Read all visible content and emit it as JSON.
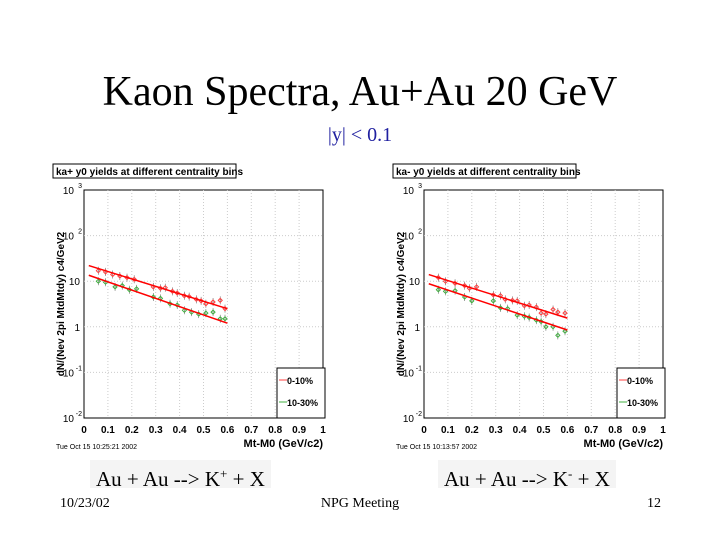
{
  "slide": {
    "title": "Kaon Spectra, Au+Au 20 GeV",
    "subtitle": "|y| < 0.1",
    "caption_left_pre": "Au + Au --> K",
    "caption_left_sup": "+",
    "caption_left_post": " + X",
    "caption_right_pre": "Au + Au --> K",
    "caption_right_sup": "-",
    "caption_right_post": " + X",
    "footer_date": "10/23/02",
    "footer_center": "NPG Meeting",
    "footer_page": "12"
  },
  "chart_data": [
    {
      "type": "scatter",
      "title": "ka+ y0 yields at different centrality bins",
      "ylabel": "dN/(Nev 2pi MtdMtdy) c4/GeV2",
      "xlabel": "Mt-M0 (GeV/c2)",
      "timestamp": "Tue Oct 15 10:25:21 2002",
      "xlim": [
        0,
        1
      ],
      "ylim": [
        0.01,
        1000
      ],
      "yscale": "log",
      "grid": true,
      "legend": "bottom-right",
      "xticks": [
        "0",
        "0.1",
        "0.2",
        "0.3",
        "0.4",
        "0.5",
        "0.6",
        "0.7",
        "0.8",
        "0.9",
        "1"
      ],
      "yticks": [
        "10^-2",
        "10^-1",
        "1",
        "10",
        "10^2",
        "10^3"
      ],
      "series": [
        {
          "name": "0-10%",
          "color": "#ff4040",
          "fit": [
            [
              0.02,
              22
            ],
            [
              0.6,
              2.5
            ]
          ],
          "points": [
            [
              0.06,
              17
            ],
            [
              0.09,
              16
            ],
            [
              0.12,
              14
            ],
            [
              0.15,
              13
            ],
            [
              0.18,
              12
            ],
            [
              0.21,
              11
            ],
            [
              0.29,
              7.5
            ],
            [
              0.32,
              7
            ],
            [
              0.34,
              7.2
            ],
            [
              0.37,
              6
            ],
            [
              0.39,
              5.5
            ],
            [
              0.42,
              4.8
            ],
            [
              0.44,
              4.6
            ],
            [
              0.47,
              4
            ],
            [
              0.49,
              3.7
            ],
            [
              0.51,
              3.2
            ],
            [
              0.54,
              3.5
            ],
            [
              0.57,
              3.8
            ],
            [
              0.59,
              2.5
            ]
          ]
        },
        {
          "name": "10-30%",
          "color": "#40b040",
          "fit": [
            [
              0.02,
              13.5
            ],
            [
              0.6,
              1.2
            ]
          ],
          "points": [
            [
              0.06,
              10
            ],
            [
              0.09,
              9.5
            ],
            [
              0.13,
              7.5
            ],
            [
              0.16,
              8
            ],
            [
              0.19,
              6.5
            ],
            [
              0.22,
              6.8
            ],
            [
              0.29,
              4.5
            ],
            [
              0.32,
              4.2
            ],
            [
              0.36,
              3.2
            ],
            [
              0.39,
              3
            ],
            [
              0.42,
              2.3
            ],
            [
              0.45,
              2.1
            ],
            [
              0.48,
              1.9
            ],
            [
              0.51,
              2
            ],
            [
              0.54,
              2.1
            ],
            [
              0.57,
              1.5
            ],
            [
              0.59,
              1.5
            ]
          ]
        }
      ]
    },
    {
      "type": "scatter",
      "title": "ka- y0 yields at different centrality bins",
      "ylabel": "dN/(Nev 2pi MtdMtdy) c4/GeV2",
      "xlabel": "Mt-M0 (GeV/c2)",
      "timestamp": "Tue Oct 15 10:13:57 2002",
      "xlim": [
        0,
        1
      ],
      "ylim": [
        0.01,
        1000
      ],
      "yscale": "log",
      "grid": true,
      "legend": "bottom-right",
      "xticks": [
        "0",
        "0.1",
        "0.2",
        "0.3",
        "0.4",
        "0.5",
        "0.6",
        "0.7",
        "0.8",
        "0.9",
        "1"
      ],
      "yticks": [
        "10^-2",
        "10^-1",
        "1",
        "10",
        "10^2",
        "10^3"
      ],
      "series": [
        {
          "name": "0-10%",
          "color": "#ff4040",
          "fit": [
            [
              0.02,
              14
            ],
            [
              0.6,
              1.55
            ]
          ],
          "points": [
            [
              0.06,
              12
            ],
            [
              0.09,
              10
            ],
            [
              0.13,
              9
            ],
            [
              0.17,
              8
            ],
            [
              0.19,
              7
            ],
            [
              0.22,
              7.5
            ],
            [
              0.29,
              5
            ],
            [
              0.32,
              4.8
            ],
            [
              0.34,
              4
            ],
            [
              0.37,
              3.8
            ],
            [
              0.39,
              3.7
            ],
            [
              0.42,
              2.9
            ],
            [
              0.44,
              3
            ],
            [
              0.47,
              2.7
            ],
            [
              0.49,
              2
            ],
            [
              0.51,
              1.9
            ],
            [
              0.54,
              2.4
            ],
            [
              0.56,
              2.1
            ],
            [
              0.59,
              2
            ]
          ]
        },
        {
          "name": "10-30%",
          "color": "#40b040",
          "fit": [
            [
              0.02,
              8.8
            ],
            [
              0.6,
              0.85
            ]
          ],
          "points": [
            [
              0.06,
              6.5
            ],
            [
              0.09,
              6
            ],
            [
              0.13,
              6.2
            ],
            [
              0.17,
              4.5
            ],
            [
              0.2,
              3.7
            ],
            [
              0.29,
              3.7
            ],
            [
              0.32,
              2.6
            ],
            [
              0.35,
              2.5
            ],
            [
              0.39,
              1.8
            ],
            [
              0.42,
              1.7
            ],
            [
              0.44,
              1.6
            ],
            [
              0.47,
              1.4
            ],
            [
              0.49,
              1.3
            ],
            [
              0.51,
              1
            ],
            [
              0.54,
              1
            ],
            [
              0.56,
              0.65
            ],
            [
              0.59,
              0.8
            ]
          ]
        }
      ]
    }
  ]
}
